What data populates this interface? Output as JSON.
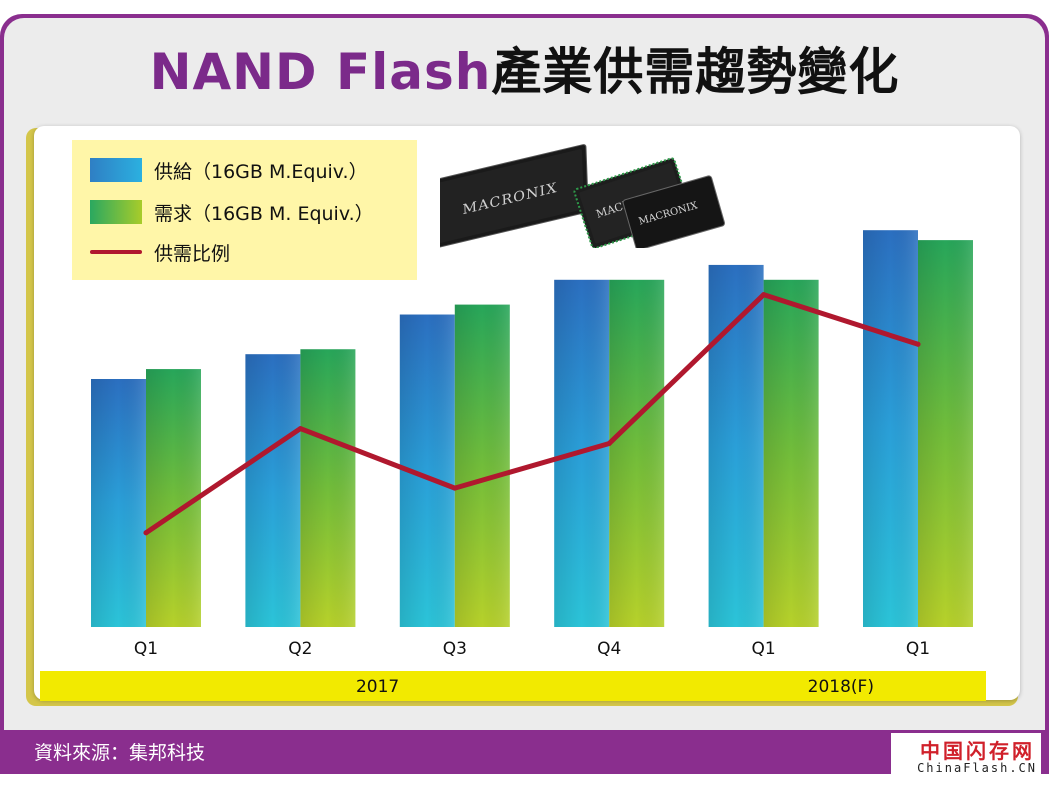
{
  "title": {
    "part_a": "NAND Flash",
    "part_b": "產業供需趨勢變化"
  },
  "source": "資料來源：集邦科技",
  "watermark": {
    "line1": "中国闪存网",
    "line2": "ChinaFlash.CN"
  },
  "chip_brand": "MACRONIX",
  "colors": {
    "frame": "#8a2e8e",
    "title_accent": "#7b2a8a",
    "supply_bar": "#2f8fd0",
    "demand_bar": "#8cc63f",
    "ratio_line": "#b0182e",
    "legend_bg": "#fff6a8",
    "year_band": "#f2ea00"
  },
  "chart_data": {
    "type": "bar",
    "title": "NAND Flash產業供需趨勢變化",
    "categories": [
      "Q1",
      "Q2",
      "Q3",
      "Q4",
      "Q1",
      "Q1"
    ],
    "year_groups": [
      {
        "label": "2017",
        "from": 0,
        "to": 3
      },
      {
        "label": "2018(F)",
        "from": 4,
        "to": 5
      }
    ],
    "series": [
      {
        "name": "供給（16GB M.Equiv.）",
        "kind": "bar",
        "icon": "blue-gradient-swatch",
        "values": [
          50,
          55,
          63,
          70,
          73,
          80
        ]
      },
      {
        "name": "需求（16GB M. Equiv.）",
        "kind": "bar",
        "icon": "green-gradient-swatch",
        "values": [
          52,
          56,
          65,
          70,
          70,
          78
        ]
      },
      {
        "name": "供需比例",
        "kind": "line",
        "icon": "red-line-swatch",
        "values": [
          19,
          40,
          28,
          37,
          67,
          57
        ]
      }
    ],
    "ylim": [
      0,
      100
    ],
    "xlabel": "",
    "ylabel": "",
    "grid": false,
    "legend_position": "top-left",
    "value_axis_shown": false
  }
}
